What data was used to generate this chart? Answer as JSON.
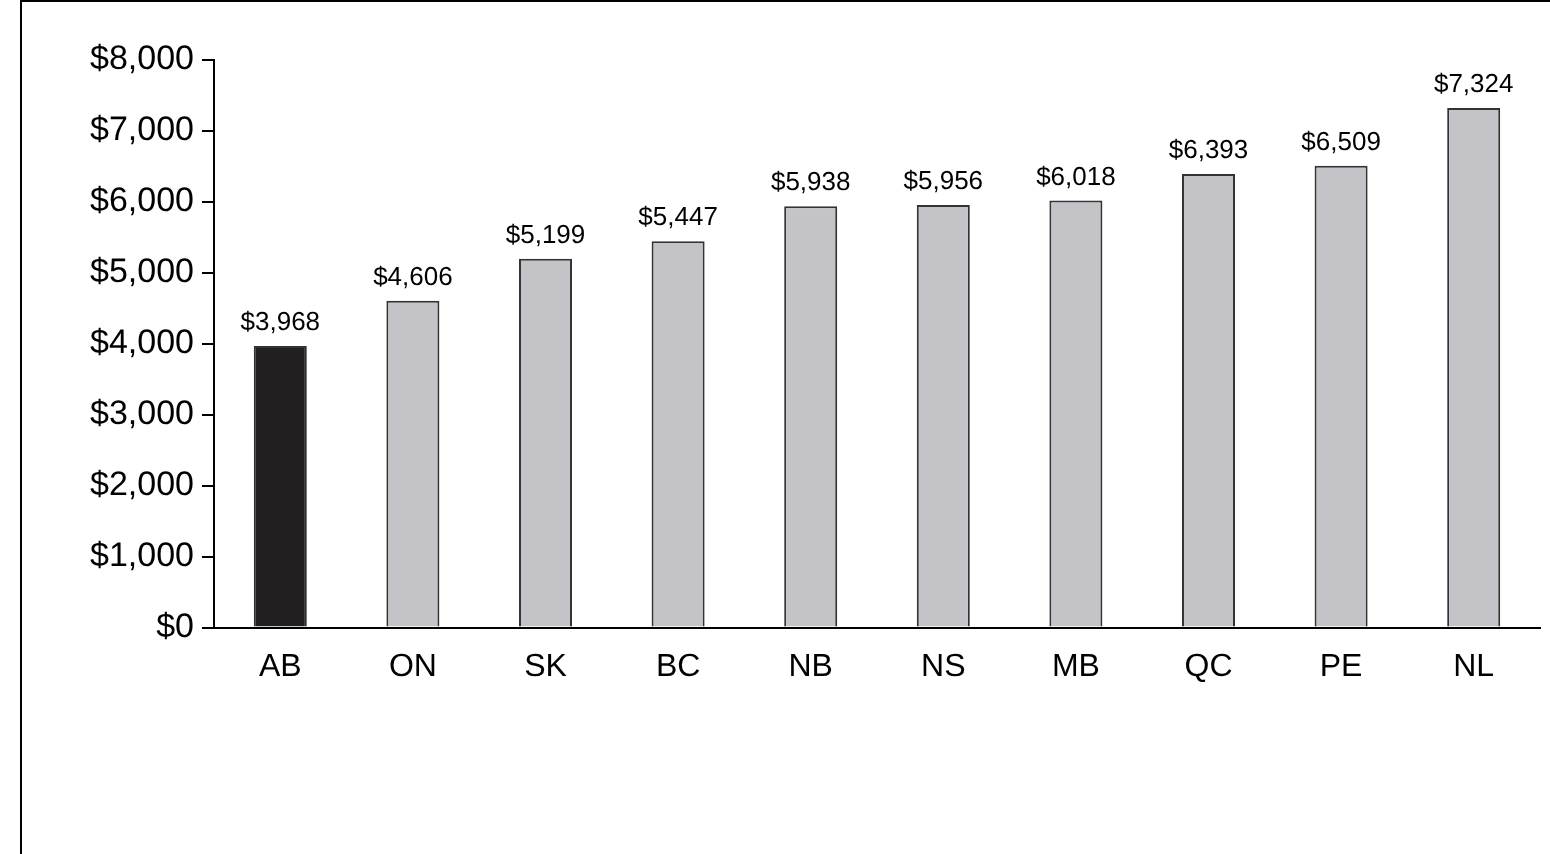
{
  "chart_data": {
    "type": "bar",
    "categories": [
      "AB",
      "ON",
      "SK",
      "BC",
      "NB",
      "NS",
      "MB",
      "QC",
      "PE",
      "NL"
    ],
    "values": [
      3968,
      4606,
      5199,
      5447,
      5938,
      5956,
      6018,
      6393,
      6509,
      7324
    ],
    "colors": [
      "#231f20",
      "#c4c4c8",
      "#c4c4c8",
      "#c4c4c8",
      "#c4c4c8",
      "#c4c4c8",
      "#c4c4c8",
      "#c4c4c8",
      "#c4c4c8",
      "#c4c4c8"
    ],
    "value_labels": [
      "$3,968",
      "$4,606",
      "$5,199",
      "$5,447",
      "$5,938",
      "$5,956",
      "$6,018",
      "$6,393",
      "$6,509",
      "$7,324"
    ],
    "ylim": [
      0,
      8000
    ],
    "yticks": [
      {
        "value": 0,
        "label": "$0"
      },
      {
        "value": 1000,
        "label": "$1,000"
      },
      {
        "value": 2000,
        "label": "$2,000"
      },
      {
        "value": 3000,
        "label": "$3,000"
      },
      {
        "value": 4000,
        "label": "$4,000"
      },
      {
        "value": 5000,
        "label": "$5,000"
      },
      {
        "value": 6000,
        "label": "$6,000"
      },
      {
        "value": 7000,
        "label": "$7,000"
      },
      {
        "value": 8000,
        "label": "$8,000"
      }
    ],
    "grid": false,
    "legend": false
  }
}
